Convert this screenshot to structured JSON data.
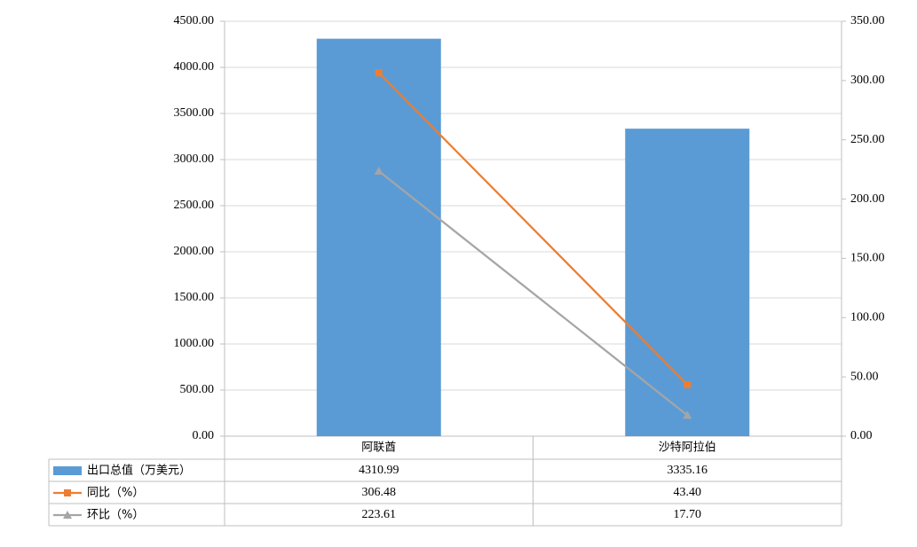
{
  "chart_data": {
    "type": "bar",
    "categories": [
      "阿联酋",
      "沙特阿拉伯"
    ],
    "series": [
      {
        "name": "出口总值（万美元）",
        "type": "bar",
        "color": "#5b9bd5",
        "values": [
          4310.99,
          3335.16
        ],
        "value_labels": [
          "4310.99",
          "3335.16"
        ]
      },
      {
        "name": "同比（%）",
        "type": "line",
        "marker": "square",
        "axis": "y2",
        "color": "#ed7d31",
        "values": [
          306.48,
          43.4
        ],
        "value_labels": [
          "306.48",
          "43.40"
        ]
      },
      {
        "name": "环比（%）",
        "type": "line",
        "marker": "triangle",
        "axis": "y2",
        "color": "#a5a5a5",
        "values": [
          223.61,
          17.7
        ],
        "value_labels": [
          "223.61",
          "17.70"
        ]
      }
    ],
    "ylim": [
      0,
      4500
    ],
    "yticks": [
      {
        "value": 0,
        "label": "0.00"
      },
      {
        "value": 500,
        "label": "500.00"
      },
      {
        "value": 1000,
        "label": "1000.00"
      },
      {
        "value": 1500,
        "label": "1500.00"
      },
      {
        "value": 2000,
        "label": "2000.00"
      },
      {
        "value": 2500,
        "label": "2500.00"
      },
      {
        "value": 3000,
        "label": "3000.00"
      },
      {
        "value": 3500,
        "label": "3500.00"
      },
      {
        "value": 4000,
        "label": "4000.00"
      },
      {
        "value": 4500,
        "label": "4500.00"
      }
    ],
    "y2lim": [
      0,
      350
    ],
    "y2ticks": [
      {
        "value": 0,
        "label": "0.00"
      },
      {
        "value": 50,
        "label": "50.00"
      },
      {
        "value": 100,
        "label": "100.00"
      },
      {
        "value": 150,
        "label": "150.00"
      },
      {
        "value": 200,
        "label": "200.00"
      },
      {
        "value": 250,
        "label": "250.00"
      },
      {
        "value": 300,
        "label": "300.00"
      },
      {
        "value": 350,
        "label": "350.00"
      }
    ],
    "grid": true
  }
}
